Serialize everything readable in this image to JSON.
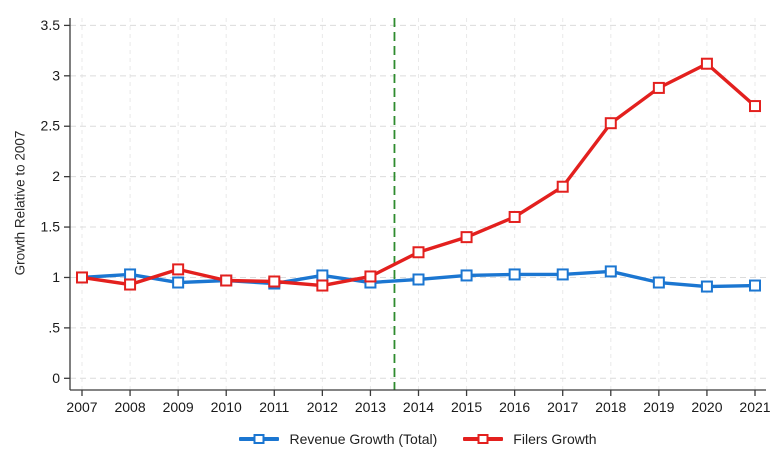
{
  "chart": {
    "y_axis_title": "Growth Relative to 2007",
    "legend": [
      {
        "label": "Revenue Growth (Total)",
        "color": "#1b76d1"
      },
      {
        "label": "Filers Growth",
        "color": "#e3201e"
      }
    ]
  },
  "chart_data": {
    "type": "line",
    "title": "",
    "xlabel": "",
    "ylabel": "Growth Relative to 2007",
    "x": [
      2007,
      2008,
      2009,
      2010,
      2011,
      2012,
      2013,
      2014,
      2015,
      2016,
      2017,
      2018,
      2019,
      2020,
      2021
    ],
    "series": [
      {
        "name": "Revenue Growth (Total)",
        "color": "#1b76d1",
        "marker": "square",
        "values": [
          1.0,
          1.03,
          0.95,
          0.97,
          0.94,
          1.02,
          0.95,
          0.98,
          1.02,
          1.03,
          1.03,
          1.06,
          0.95,
          0.91,
          0.92
        ]
      },
      {
        "name": "Filers Growth",
        "color": "#e3201e",
        "marker": "square",
        "values": [
          1.0,
          0.93,
          1.08,
          0.97,
          0.96,
          0.92,
          1.01,
          1.25,
          1.4,
          1.6,
          1.9,
          2.53,
          2.88,
          3.12,
          2.7
        ]
      }
    ],
    "ylim": [
      0,
      3.5
    ],
    "yticks": [
      0,
      0.5,
      1,
      1.5,
      2,
      2.5,
      3,
      3.5
    ],
    "ytick_labels": [
      "0",
      ".5",
      "1",
      "1.5",
      "2",
      "2.5",
      "3",
      "3.5"
    ],
    "grid": true,
    "legend_position": "bottom",
    "reference_line": {
      "x": 2013.5,
      "color": "#2e8b2e",
      "style": "dashed"
    },
    "colors": {
      "axis": "#3a3a3a",
      "h_grid": "#dcdcdc",
      "v_grid": "#e9e9e9",
      "tick_text": "#1a1a1a",
      "background": "#ffffff"
    }
  }
}
